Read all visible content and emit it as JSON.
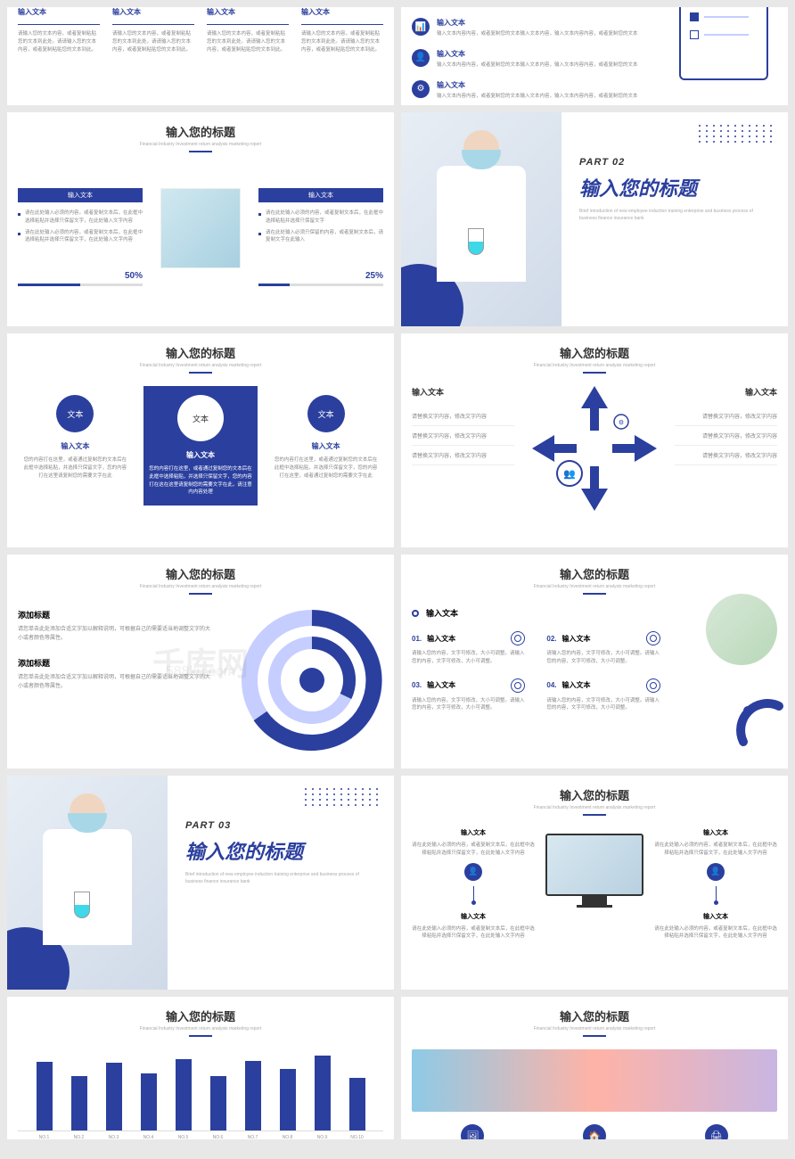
{
  "colors": {
    "primary": "#2b3f9e",
    "light": "#c5ceff",
    "bg": "#ffffff",
    "text": "#333333",
    "muted": "#888888"
  },
  "watermark": {
    "main": "千库网",
    "sub": "588ku.com"
  },
  "common": {
    "title": "输入您的标题",
    "subtitle": "Financial Industry Investment return analysis marketing report",
    "input_text": "输入文本",
    "text": "文本",
    "add_title": "添加标题"
  },
  "s1": {
    "cols": [
      {
        "h": "输入文本",
        "t": "请输入您的文本内容，或者复制粘贴您的文本到此处。请请输入您的文本内容，或者复制粘贴您的文本到此。"
      },
      {
        "h": "输入文本",
        "t": "请输入您的文本内容，或者复制粘贴您的文本到此处。请请输入您的文本内容，或者复制粘贴您的文本到此。"
      },
      {
        "h": "输入文本",
        "t": "请输入您的文本内容，或者复制粘贴您的文本到此处。请请输入您的文本内容，或者复制粘贴您的文本到此。"
      },
      {
        "h": "输入文本",
        "t": "请输入您的文本内容，或者复制粘贴您的文本到此处。请请输入您的文本内容，或者复制粘贴您的文本到此。"
      }
    ]
  },
  "s2": {
    "items": [
      {
        "h": "输入文本",
        "t": "输入文本内容内容，或者复制您的文本输入文本内容，输入文本内容内容，或者复制您的文本"
      },
      {
        "h": "输入文本",
        "t": "输入文本内容内容，或者复制您的文本输入文本内容，输入文本内容内容，或者复制您的文本"
      },
      {
        "h": "输入文本",
        "t": "输入文本内容内容，或者复制您的文本输入文本内容，输入文本内容内容，或者复制您的文本"
      }
    ]
  },
  "s3": {
    "boxes": [
      {
        "h": "输入文本",
        "items": [
          "请在此处输入必须的内容，或者复制文本后，在此框中选择粘贴并选择只保留文字，在此处输入文字内容",
          "请在此处输入必须的内容，或者复制文本后，在此框中选择粘贴并选择只保留文字，在此处输入文字内容"
        ],
        "pct": "50%",
        "fill": 50
      },
      {
        "h": "输入文本",
        "items": [
          "请在此处输入必须的内容，或者复制文本后，在此框中选择粘贴并选择只保留文字",
          "请在此处输入必须只保留的内容，或者复制文本后，请复制文字在此输入"
        ],
        "pct": "25%",
        "fill": 25
      }
    ]
  },
  "s4": {
    "part": "PART 02",
    "title": "输入您的标题",
    "desc": "Brief introduction of new employee induction training enterprise and business process of business finance insurance bank"
  },
  "s5": {
    "boxes": [
      {
        "c": "文本",
        "h": "输入文本",
        "t": "您的内容打在这里，或者通过复制您的文本后在此框中选择粘贴，并选择只保留文字，您的内容打在这里请复制您的需要文字在此"
      },
      {
        "c": "文本",
        "h": "输入文本",
        "t": "您的内容打在这里，或者通过复制您的文本后在此框中选择粘贴，并选择只保留文字，您的内容打在这在这里请复制您的需要文字在此，请注意内内容处理"
      },
      {
        "c": "文本",
        "h": "输入文本",
        "t": "您的内容打在这里，或者通过复制您的文本后在此框中选择粘贴，并选择只保留文字，您的内容打在这里，或者通过复制您的需要文字在此"
      }
    ]
  },
  "s6": {
    "left": {
      "h": "输入文本",
      "lines": [
        "请替换文字内容，修改文字内容",
        "请替换文字内容，修改文字内容",
        "请替换文字内容，修改文字内容"
      ]
    },
    "right": {
      "h": "输入文本",
      "lines": [
        "请替换文字内容，修改文字内容",
        "请替换文字内容，修改文字内容",
        "请替换文字内容，修改文字内容"
      ]
    }
  },
  "s7": {
    "blocks": [
      {
        "h": "添加标题",
        "t": "请您单击此处添加合适文字加以解释说明，可根据自己的需要适当地调整文字的大小或者颜色等属性。"
      },
      {
        "h": "添加标题",
        "t": "请您单击此处添加合适文字加以解释说明，可根据自己的需要适当地调整文字的大小或者颜色等属性。"
      }
    ],
    "donut": {
      "outer": 75,
      "inner": 55,
      "color1": "#2b3f9e",
      "color2": "#c5ceff"
    }
  },
  "s8": {
    "top": "输入文本",
    "items": [
      {
        "n": "01.",
        "h": "输入文本",
        "t": "请输入您的内容，文字可修改，大小可调整。请输入您的内容，文字可修改，大小可调整。"
      },
      {
        "n": "02.",
        "h": "输入文本",
        "t": "请输入您的内容，文字可修改，大小可调整。请输入您的内容，文字可修改，大小可调整。"
      },
      {
        "n": "03.",
        "h": "输入文本",
        "t": "请输入您的内容，文字可修改，大小可调整。请输入您的内容，文字可修改，大小可调整。"
      },
      {
        "n": "04.",
        "h": "输入文本",
        "t": "请输入您的内容，文字可修改，大小可调整。请输入您的内容，文字可修改，大小可调整。"
      }
    ]
  },
  "s9": {
    "part": "PART 03",
    "title": "输入您的标题",
    "desc": "Brief introduction of new employee induction training enterprise and business process of business finance insurance bank"
  },
  "s10": {
    "top": [
      {
        "h": "输入文本",
        "t": "请在此处输入必须的内容，或者复制文本后，在此框中选择粘贴并选择只保留文字，在此处输入文字内容"
      },
      {
        "h": "输入文本",
        "t": "请在此处输入必须的内容，或者复制文本后，在此框中选择粘贴并选择只保留文字，在此处输入文字内容"
      }
    ],
    "bottom": [
      {
        "h": "输入文本",
        "t": "请在此处输入必须的内容，或者复制文本后，在此框中选择粘贴并选择只保留文字，在此处输入文字内容"
      },
      {
        "h": "输入文本",
        "t": "请在此处输入必须的内容，或者复制文本后，在此框中选择粘贴并选择只保留文字，在此处输入文字内容"
      }
    ]
  },
  "s11": {
    "bars": [
      120,
      95,
      118,
      100,
      125,
      95,
      122,
      108,
      130,
      92
    ],
    "labels": [
      "NO.1",
      "NO.2",
      "NO.3",
      "NO.4",
      "NO.5",
      "NO.6",
      "NO.7",
      "NO.8",
      "NO.9",
      "NO.10"
    ],
    "bar_color": "#2b3f9e",
    "max_height": 140
  },
  "s12": {
    "icons": [
      "🖼",
      "🏠",
      "🖨"
    ]
  }
}
